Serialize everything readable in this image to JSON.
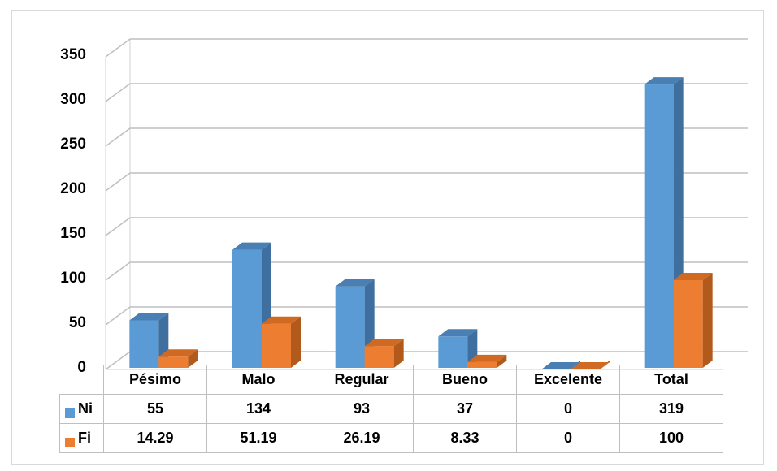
{
  "chart_data": {
    "type": "bar",
    "categories": [
      "Pésimo",
      "Malo",
      "Regular",
      "Bueno",
      "Excelente",
      "Total"
    ],
    "series": [
      {
        "name": "Ni",
        "values": [
          55,
          134,
          93,
          37,
          0,
          319
        ],
        "labels": [
          "55",
          "134",
          "93",
          "37",
          "0",
          "319"
        ],
        "color": "#5b9bd5"
      },
      {
        "name": "Fi",
        "values": [
          14.29,
          51.19,
          26.19,
          8.33,
          0,
          100
        ],
        "labels": [
          "14.29",
          "51.19",
          "26.19",
          "8.33",
          "0",
          "100"
        ],
        "color": "#ed7d31"
      }
    ],
    "yticks": [
      "0",
      "50",
      "100",
      "150",
      "200",
      "250",
      "300",
      "350"
    ],
    "ylim": [
      0,
      350
    ],
    "grid": true,
    "style": "3d-clustered-column",
    "legend": "data-table"
  }
}
